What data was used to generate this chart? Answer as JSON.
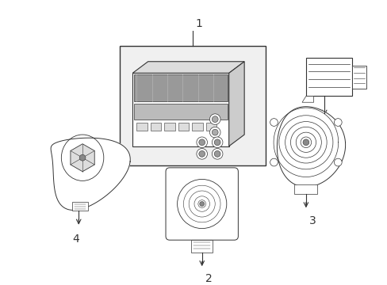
{
  "background_color": "#ffffff",
  "fig_width": 4.89,
  "fig_height": 3.6,
  "dpi": 100,
  "line_color": "#333333",
  "gray_light": "#cccccc",
  "gray_med": "#aaaaaa",
  "gray_fill": "#e8e8e8"
}
